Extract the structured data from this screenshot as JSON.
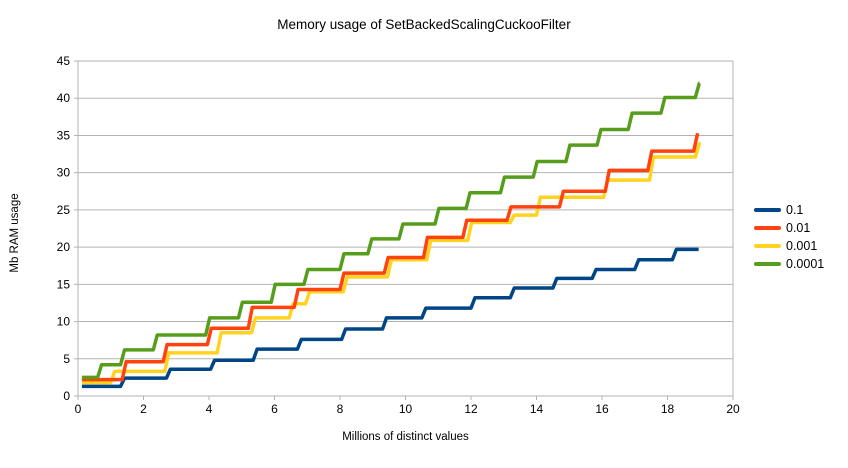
{
  "chart": {
    "title": "Memory usage of SetBackedScalingCuckooFilter",
    "grid_color": "#b3b3b3",
    "text_color": "#000000",
    "background_color": "#ffffff"
  },
  "chart_data": {
    "type": "line",
    "subtype": "step",
    "title": "Memory usage of SetBackedScalingCuckooFilter",
    "xlabel": "Millions of distinct values",
    "ylabel": "Mb RAM usage",
    "xlim": [
      0,
      20
    ],
    "ylim": [
      0,
      45
    ],
    "x_ticks": [
      0,
      2,
      4,
      6,
      8,
      10,
      12,
      14,
      16,
      18,
      20
    ],
    "y_ticks": [
      0,
      5,
      10,
      15,
      20,
      25,
      30,
      35,
      40,
      45
    ],
    "grid": true,
    "legend_position": "right",
    "series": [
      {
        "name": "0.1",
        "color": "#004586",
        "start_x": 0.12,
        "start_y": 1.3,
        "steps": [
          [
            1.3,
            2.4
          ],
          [
            2.7,
            3.6
          ],
          [
            4.05,
            4.8
          ],
          [
            5.35,
            6.3
          ],
          [
            6.7,
            7.6
          ],
          [
            8.05,
            9.0
          ],
          [
            9.3,
            10.5
          ],
          [
            10.5,
            11.8
          ],
          [
            12.0,
            13.2
          ],
          [
            13.2,
            14.5
          ],
          [
            14.5,
            15.8
          ],
          [
            15.7,
            17.0
          ],
          [
            17.0,
            18.3
          ],
          [
            18.15,
            19.7
          ]
        ],
        "end_x": 18.95
      },
      {
        "name": "0.01",
        "color": "#ff420e",
        "start_x": 0.12,
        "start_y": 2.2,
        "steps": [
          [
            1.35,
            4.6
          ],
          [
            2.6,
            6.9
          ],
          [
            3.95,
            9.1
          ],
          [
            5.2,
            11.9
          ],
          [
            6.6,
            14.3
          ],
          [
            8.0,
            16.5
          ],
          [
            9.35,
            18.6
          ],
          [
            10.55,
            21.3
          ],
          [
            11.75,
            23.6
          ],
          [
            13.1,
            25.4
          ],
          [
            14.7,
            27.5
          ],
          [
            16.1,
            30.3
          ],
          [
            17.4,
            32.9
          ],
          [
            18.8,
            35.3
          ]
        ],
        "end_x": 18.92
      },
      {
        "name": "0.001",
        "color": "#ffd320",
        "start_x": 0.12,
        "start_y": 1.8,
        "steps": [
          [
            1.0,
            3.3
          ],
          [
            2.65,
            5.8
          ],
          [
            4.25,
            8.5
          ],
          [
            5.3,
            10.5
          ],
          [
            6.45,
            12.4
          ],
          [
            6.95,
            14.0
          ],
          [
            8.1,
            16.0
          ],
          [
            9.45,
            18.3
          ],
          [
            10.65,
            20.9
          ],
          [
            11.9,
            23.3
          ],
          [
            13.2,
            24.3
          ],
          [
            14.0,
            26.7
          ],
          [
            16.05,
            29.0
          ],
          [
            17.45,
            32.1
          ],
          [
            18.85,
            33.9
          ]
        ],
        "end_x": 18.95
      },
      {
        "name": "0.0001",
        "color": "#579d1c",
        "start_x": 0.12,
        "start_y": 2.5,
        "steps": [
          [
            0.6,
            4.2
          ],
          [
            1.3,
            6.2
          ],
          [
            2.3,
            8.2
          ],
          [
            3.9,
            10.5
          ],
          [
            4.9,
            12.6
          ],
          [
            5.9,
            15.0
          ],
          [
            6.9,
            17.0
          ],
          [
            8.0,
            19.1
          ],
          [
            8.85,
            21.1
          ],
          [
            9.8,
            23.1
          ],
          [
            10.9,
            25.2
          ],
          [
            11.85,
            27.3
          ],
          [
            12.9,
            29.4
          ],
          [
            13.9,
            31.5
          ],
          [
            14.9,
            33.7
          ],
          [
            15.85,
            35.8
          ],
          [
            16.8,
            38.0
          ],
          [
            17.8,
            40.1
          ],
          [
            18.85,
            42.0
          ]
        ],
        "end_x": 18.98
      }
    ]
  },
  "legend": {
    "items": [
      {
        "label": "0.1",
        "color": "#004586"
      },
      {
        "label": "0.01",
        "color": "#ff420e"
      },
      {
        "label": "0.001",
        "color": "#ffd320"
      },
      {
        "label": "0.0001",
        "color": "#579d1c"
      }
    ]
  }
}
